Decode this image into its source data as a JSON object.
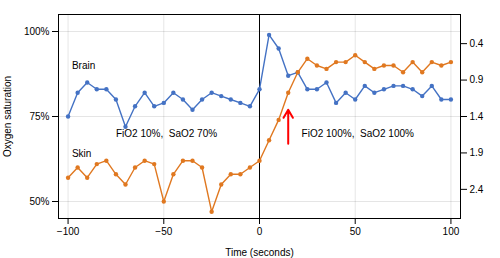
{
  "chart_data": {
    "type": "line",
    "x": [
      -100,
      -95,
      -90,
      -85,
      -80,
      -75,
      -70,
      -65,
      -60,
      -55,
      -50,
      -45,
      -40,
      -35,
      -30,
      -25,
      -20,
      -15,
      -10,
      -5,
      0,
      5,
      10,
      15,
      20,
      25,
      30,
      35,
      40,
      45,
      50,
      55,
      60,
      65,
      70,
      75,
      80,
      85,
      90,
      95,
      100
    ],
    "series": [
      {
        "color": "#4472C4",
        "marker": "circle",
        "values": [
          75,
          82,
          85,
          83,
          83,
          80,
          72,
          78,
          82,
          78,
          79,
          82,
          80,
          77,
          80,
          82,
          81,
          80,
          79,
          78,
          83,
          99,
          95,
          87,
          88,
          83,
          83,
          85,
          79,
          82,
          80,
          84,
          82,
          83,
          84,
          84,
          83,
          81,
          84,
          80,
          80
        ]
      },
      {
        "color": "#E07820",
        "marker": "circle",
        "values": [
          57,
          60,
          57,
          61,
          62,
          58,
          55,
          60,
          62,
          61,
          50,
          58,
          62,
          62,
          60,
          47,
          55,
          58,
          58,
          60,
          62,
          68,
          74,
          82,
          88,
          92,
          90,
          89,
          91,
          91,
          93,
          91,
          89,
          90,
          90,
          88,
          91,
          88,
          91,
          90,
          91
        ]
      }
    ],
    "xlim": [
      -105,
      105
    ],
    "ylim": [
      45,
      105
    ],
    "xticks": [
      -100,
      -50,
      0,
      50,
      100
    ],
    "yticks": [
      {
        "value": 50,
        "label": "50%"
      },
      {
        "value": 75,
        "label": "75%"
      },
      {
        "value": 100,
        "label": "100%"
      }
    ],
    "y2lim": [
      2.8,
      0.0
    ],
    "y2ticks": [
      0.4,
      0.9,
      1.4,
      1.9,
      2.4
    ],
    "xlabel": "Time (seconds)",
    "ylabel": "Oxygen saturation",
    "grid": true,
    "vlines": [
      0
    ],
    "annotations": [
      {
        "text": "Brain",
        "x": -98,
        "y": 89
      },
      {
        "text": "Skin",
        "x": -98,
        "y": 63
      },
      {
        "text": "FiO2 10%,  SaO2 70%",
        "x": -75,
        "y": 69
      },
      {
        "text": "FiO2 100%,  SaO2 100%",
        "x": 22,
        "y": 69
      }
    ],
    "arrow": {
      "x": 15,
      "y_base": 67,
      "y_tip": 77,
      "color": "red"
    }
  }
}
